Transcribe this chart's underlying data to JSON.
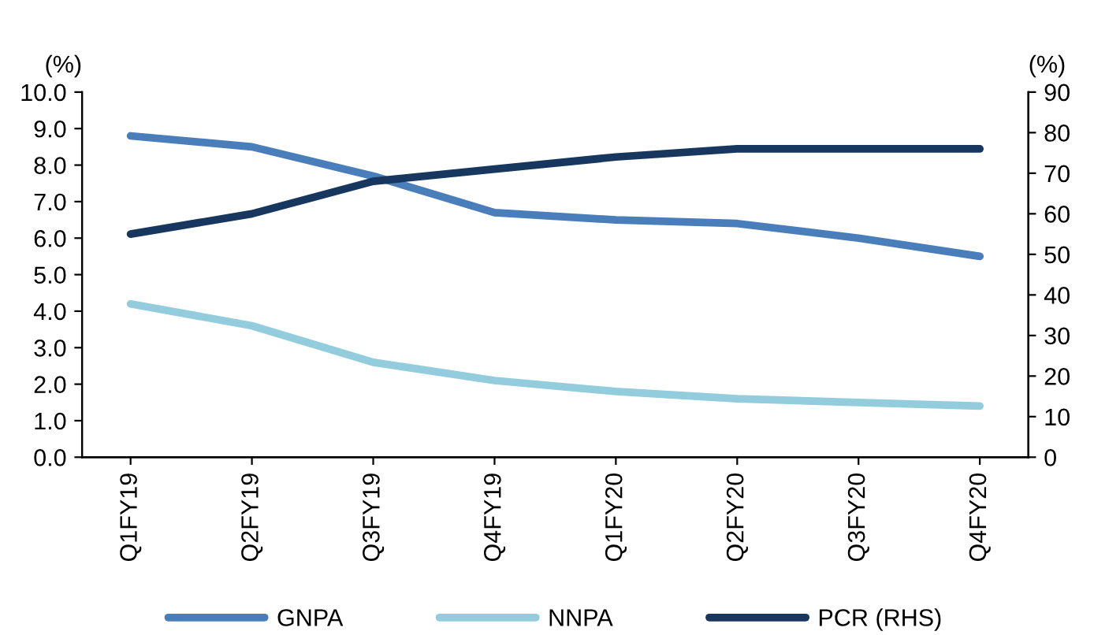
{
  "chart_data": {
    "type": "line",
    "ylabel": "(%)",
    "y2label": "(%)",
    "categories": [
      "Q1FY19",
      "Q2FY19",
      "Q3FY19",
      "Q4FY19",
      "Q1FY20",
      "Q2FY20",
      "Q3FY20",
      "Q4FY20"
    ],
    "series": [
      {
        "name": "GNPA",
        "color": "#4a7ebb",
        "values": [
          8.8,
          8.5,
          7.7,
          6.7,
          6.5,
          6.4,
          6.0,
          5.5
        ]
      },
      {
        "name": "NNPA",
        "color": "#93cddd",
        "values": [
          4.2,
          3.6,
          2.6,
          2.1,
          1.8,
          1.6,
          1.5,
          1.4
        ]
      },
      {
        "name": "PCR (RHS)",
        "color": "#17375e",
        "axis": "y2",
        "values": [
          55,
          60,
          68,
          71,
          74,
          76,
          76,
          76
        ]
      }
    ],
    "ylim": [
      0,
      10
    ],
    "yticks": [
      {
        "value": 0,
        "label": "0.0"
      },
      {
        "value": 1,
        "label": "1.0"
      },
      {
        "value": 2,
        "label": "2.0"
      },
      {
        "value": 3,
        "label": "3.0"
      },
      {
        "value": 4,
        "label": "4.0"
      },
      {
        "value": 5,
        "label": "5.0"
      },
      {
        "value": 6,
        "label": "6.0"
      },
      {
        "value": 7,
        "label": "7.0"
      },
      {
        "value": 8,
        "label": "8.0"
      },
      {
        "value": 9,
        "label": "9.0"
      },
      {
        "value": 10,
        "label": "10.0"
      }
    ],
    "y2lim": [
      0,
      90
    ],
    "y2ticks": [
      0,
      10,
      20,
      30,
      40,
      50,
      60,
      70,
      80,
      90
    ],
    "legend": "bottom",
    "grid": false,
    "marker": "none",
    "line_style": "solid"
  }
}
